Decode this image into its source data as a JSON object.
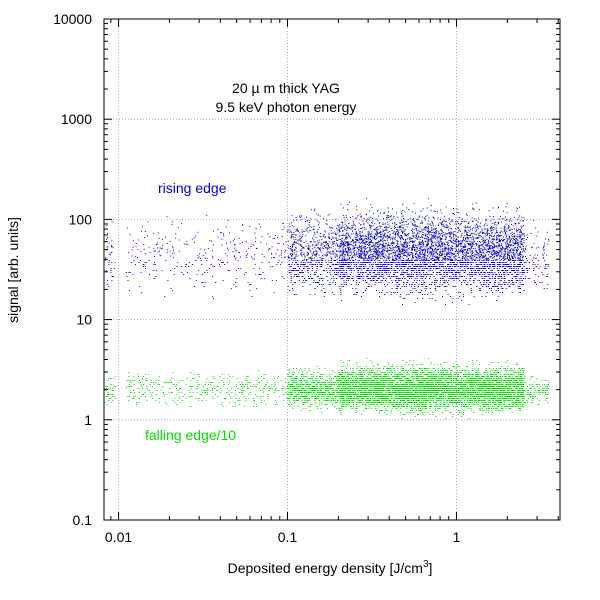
{
  "chart_data": {
    "type": "scatter",
    "title": "",
    "xlabel": "Deposited energy density [J/cm",
    "xlabel_sup": "3",
    "xlabel_suffix": "]",
    "ylabel": "signal [arb. units]",
    "xscale": "log",
    "yscale": "log",
    "xlim": [
      0.0082,
      4.1
    ],
    "ylim": [
      0.1,
      10000
    ],
    "grid": true,
    "x_ticks": [
      {
        "value": 0.01,
        "label": "0.01"
      },
      {
        "value": 0.1,
        "label": "0.1"
      },
      {
        "value": 1,
        "label": "1"
      }
    ],
    "y_ticks": [
      {
        "value": 0.1,
        "label": "0.1"
      },
      {
        "value": 1,
        "label": "1"
      },
      {
        "value": 10,
        "label": "10"
      },
      {
        "value": 100,
        "label": "100"
      },
      {
        "value": 1000,
        "label": "1000"
      },
      {
        "value": 10000,
        "label": "10000"
      }
    ],
    "annotations": [
      {
        "text": "20  µ m thick YAG",
        "x": 0.079,
        "y": 2400
      },
      {
        "text": "9.5 keV photon energy",
        "x": 0.079,
        "y": 1250
      }
    ],
    "series": [
      {
        "name": "rising edge",
        "color": "#0000cc",
        "label_position": {
          "x": 0.0265,
          "y": 190
        },
        "density_regions": [
          {
            "x_range": [
              0.0082,
              0.0095
            ],
            "y_range": [
              12,
              130
            ],
            "points": 35
          },
          {
            "x_range": [
              0.011,
              0.1
            ],
            "y_range": [
              14,
              140
            ],
            "points": 330
          },
          {
            "x_range": [
              0.1,
              0.2
            ],
            "y_range": [
              13,
              150
            ],
            "points": 650
          },
          {
            "x_range": [
              0.2,
              2.5
            ],
            "y_range": [
              13,
              170
            ],
            "points": 4600
          },
          {
            "x_range": [
              2.5,
              3.5
            ],
            "y_range": [
              14,
              110
            ],
            "points": 100
          }
        ]
      },
      {
        "name": "falling edge/10",
        "color": "#00dd00",
        "label_position": {
          "x": 0.036,
          "y": 0.7
        },
        "density_regions": [
          {
            "x_range": [
              0.0082,
              0.0095
            ],
            "y_range": [
              1.2,
              3.2
            ],
            "points": 40
          },
          {
            "x_range": [
              0.011,
              0.1
            ],
            "y_range": [
              1.2,
              3.5
            ],
            "points": 400
          },
          {
            "x_range": [
              0.1,
              0.2
            ],
            "y_range": [
              1.1,
              3.8
            ],
            "points": 700
          },
          {
            "x_range": [
              0.2,
              2.5
            ],
            "y_range": [
              1.0,
              4.3
            ],
            "points": 4800
          },
          {
            "x_range": [
              2.5,
              3.5
            ],
            "y_range": [
              1.2,
              3.2
            ],
            "points": 110
          }
        ]
      }
    ]
  }
}
